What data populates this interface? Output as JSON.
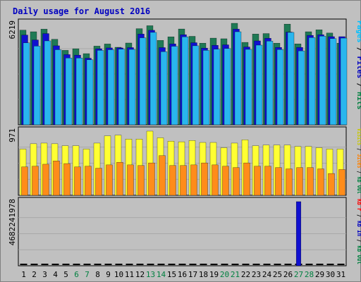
{
  "chart_data": {
    "title": "Daily usage for August 2016",
    "type": "bar",
    "days": [
      "1",
      "2",
      "3",
      "4",
      "5",
      "6",
      "7",
      "8",
      "9",
      "10",
      "11",
      "12",
      "13",
      "14",
      "15",
      "16",
      "17",
      "18",
      "19",
      "20",
      "21",
      "22",
      "23",
      "24",
      "25",
      "26",
      "27",
      "28",
      "29",
      "30",
      "31"
    ],
    "weekend_days": [
      "6",
      "7",
      "13",
      "14",
      "20",
      "21",
      "27",
      "28"
    ],
    "panels": [
      {
        "id": "hits-panel",
        "max_label": "6219",
        "ymax": 6219,
        "legend": [
          {
            "text": "Pages",
            "color": "#00c0ff"
          },
          {
            "text": " / ",
            "color": "#000000"
          },
          {
            "text": "Files",
            "color": "#0000c0"
          },
          {
            "text": " / ",
            "color": "#000000"
          },
          {
            "text": "Hits",
            "color": "#008040"
          }
        ],
        "series": [
          {
            "name": "Hits",
            "color": "#1f7a55",
            "values": [
              5800,
              5700,
              5860,
              5240,
              4560,
              4660,
              4360,
              4820,
              4950,
              4750,
              5010,
              5890,
              6070,
              5170,
              5390,
              5870,
              5420,
              5000,
              5310,
              5270,
              6219,
              5050,
              5560,
              5590,
              5000,
              6170,
              4960,
              5700,
              5820,
              5620,
              5000
            ]
          },
          {
            "name": "Files",
            "color": "#1010d0",
            "values": [
              5500,
              5200,
              5590,
              4840,
              4300,
              4270,
              4080,
              4660,
              4710,
              4710,
              4730,
              5560,
              5790,
              4730,
              4960,
              5520,
              5030,
              4700,
              4870,
              4900,
              5860,
              4770,
              5140,
              5300,
              4740,
              5680,
              4740,
              5480,
              5520,
              5400,
              5400
            ]
          },
          {
            "name": "Pages",
            "color": "#29b6ee",
            "values": [
              5020,
              4820,
              5140,
              4600,
              4090,
              4090,
              3980,
              4560,
              4600,
              4630,
              4620,
              5330,
              5660,
              4480,
              4810,
              5390,
              4840,
              4560,
              4630,
              4670,
              5700,
              4620,
              4880,
              5130,
              4610,
              5660,
              4530,
              5340,
              5430,
              5280,
              5310
            ]
          }
        ]
      },
      {
        "id": "visits-panel",
        "max_label": "971",
        "ymax": 971,
        "legend": [
          {
            "text": "Visits",
            "color": "#c8c800"
          },
          {
            "text": " / ",
            "color": "#000000"
          },
          {
            "text": "Sites",
            "color": "#ff8000"
          },
          {
            "text": " / ",
            "color": "#000000"
          },
          {
            "text": "kB Out",
            "color": "#008040"
          }
        ],
        "series": [
          {
            "name": "Visits",
            "color": "#ffff33",
            "values": [
              700,
              780,
              790,
              780,
              750,
              750,
              700,
              790,
              900,
              910,
              850,
              850,
              971,
              870,
              820,
              810,
              830,
              800,
              800,
              720,
              790,
              840,
              750,
              760,
              760,
              760,
              740,
              740,
              720,
              700,
              700
            ]
          },
          {
            "name": "Sites",
            "color": "#ff8c1a",
            "values": [
              430,
              440,
              470,
              520,
              480,
              430,
              440,
              410,
              460,
              500,
              460,
              450,
              490,
              600,
              450,
              450,
              460,
              490,
              460,
              440,
              420,
              490,
              440,
              440,
              420,
              400,
              420,
              420,
              400,
              330,
              390
            ]
          }
        ]
      },
      {
        "id": "kb-panel",
        "max_label": "4682241978",
        "ymax": 4682241978,
        "legend": [
          {
            "text": "kB F",
            "color": "#ff0000"
          },
          {
            "text": " / ",
            "color": "#000000"
          },
          {
            "text": "kB In",
            "color": "#0000c0"
          },
          {
            "text": " / ",
            "color": "#000000"
          },
          {
            "text": "kB Out",
            "color": "#008040"
          }
        ],
        "series": [
          {
            "name": "kB In",
            "color": "#1010d0",
            "values": [
              0,
              0,
              0,
              0,
              0,
              0,
              0,
              0,
              0,
              0,
              0,
              0,
              0,
              0,
              0,
              0,
              0,
              0,
              0,
              0,
              0,
              0,
              0,
              0,
              0,
              0,
              4682241978,
              0,
              0,
              0,
              0
            ]
          }
        ]
      }
    ]
  },
  "colors": {
    "page_background": "#ffffff",
    "frame": "#c0c0c0",
    "plot_background": "#c0c0c0",
    "title_color": "#0000c0",
    "weekday_label": "#000000",
    "weekend_label": "#008040"
  }
}
